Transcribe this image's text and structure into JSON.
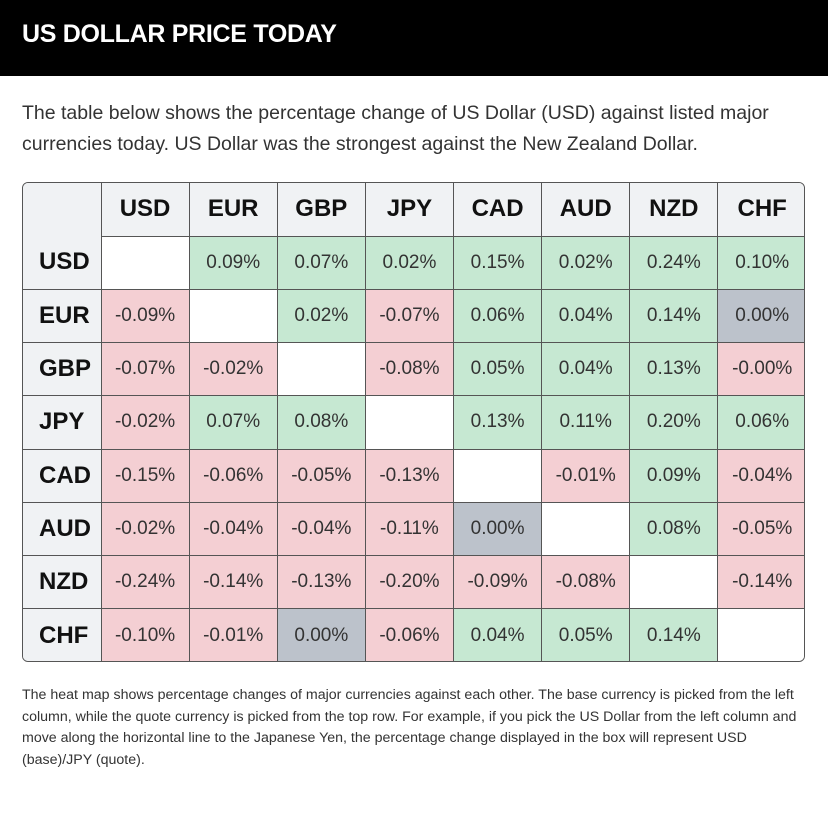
{
  "header": {
    "title": "US DOLLAR PRICE TODAY"
  },
  "intro": "The table below shows the percentage change of US Dollar (USD) against listed major currencies today. US Dollar was the strongest against the New Zealand Dollar.",
  "heatmap": {
    "columns": [
      "USD",
      "EUR",
      "GBP",
      "JPY",
      "CAD",
      "AUD",
      "NZD",
      "CHF"
    ],
    "rows": [
      {
        "label": "USD",
        "cells": [
          "",
          "0.09%",
          "0.07%",
          "0.02%",
          "0.15%",
          "0.02%",
          "0.24%",
          "0.10%"
        ]
      },
      {
        "label": "EUR",
        "cells": [
          "-0.09%",
          "",
          "0.02%",
          "-0.07%",
          "0.06%",
          "0.04%",
          "0.14%",
          "0.00%"
        ]
      },
      {
        "label": "GBP",
        "cells": [
          "-0.07%",
          "-0.02%",
          "",
          "-0.08%",
          "0.05%",
          "0.04%",
          "0.13%",
          "-0.00%"
        ]
      },
      {
        "label": "JPY",
        "cells": [
          "-0.02%",
          "0.07%",
          "0.08%",
          "",
          "0.13%",
          "0.11%",
          "0.20%",
          "0.06%"
        ]
      },
      {
        "label": "CAD",
        "cells": [
          "-0.15%",
          "-0.06%",
          "-0.05%",
          "-0.13%",
          "",
          "-0.01%",
          "0.09%",
          "-0.04%"
        ]
      },
      {
        "label": "AUD",
        "cells": [
          "-0.02%",
          "-0.04%",
          "-0.04%",
          "-0.11%",
          "0.00%",
          "",
          "0.08%",
          "-0.05%"
        ]
      },
      {
        "label": "NZD",
        "cells": [
          "-0.24%",
          "-0.14%",
          "-0.13%",
          "-0.20%",
          "-0.09%",
          "-0.08%",
          "",
          "-0.14%"
        ]
      },
      {
        "label": "CHF",
        "cells": [
          "-0.10%",
          "-0.01%",
          "0.00%",
          "-0.06%",
          "0.04%",
          "0.05%",
          "0.14%",
          ""
        ]
      }
    ],
    "colors": {
      "positive": "#c6e8d2",
      "negative": "#f4cfd3",
      "zero": "#bcc2cb",
      "self": "#ffffff"
    }
  },
  "footnote": "The heat map shows percentage changes of major currencies against each other. The base currency is picked from the left column, while the quote currency is picked from the top row. For example, if you pick the US Dollar from the left column and move along the horizontal line to the Japanese Yen, the percentage change displayed in the box will represent USD (base)/JPY (quote)."
}
